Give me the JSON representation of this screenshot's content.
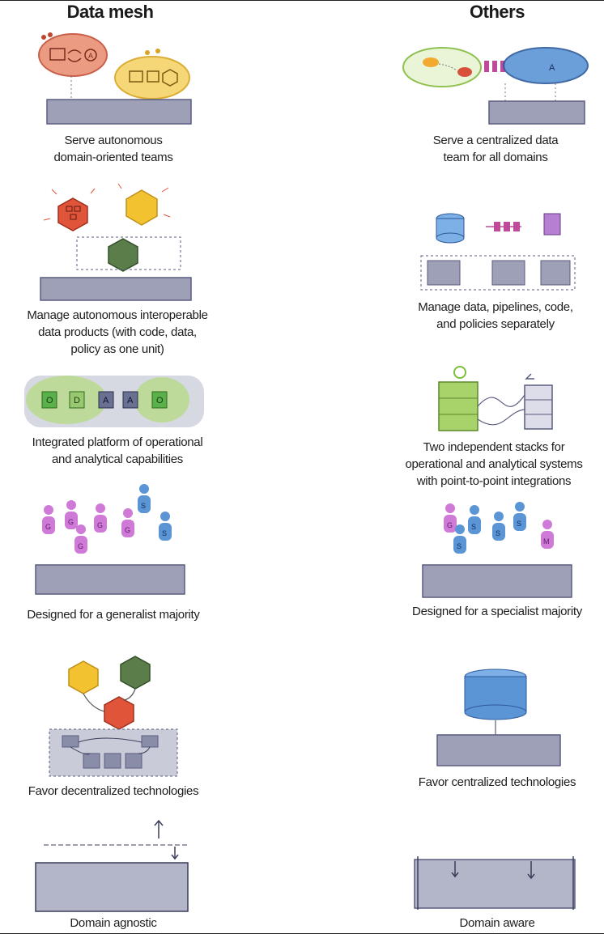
{
  "columns": {
    "left_title": "Data mesh",
    "right_title": "Others"
  },
  "rows": [
    {
      "left": [
        "Serve autonomous",
        "domain-oriented teams"
      ],
      "right": [
        "Serve a centralized data",
        "team for all domains"
      ]
    },
    {
      "left": [
        "Manage autonomous interoperable",
        "data products (with code, data,",
        "policy as one unit)"
      ],
      "right": [
        "Manage data, pipelines, code,",
        "and policies separately"
      ]
    },
    {
      "left": [
        "Integrated platform of operational",
        "and analytical capabilities"
      ],
      "right": [
        "Two independent stacks for",
        "operational and analytical systems",
        "with point-to-point integrations"
      ]
    },
    {
      "left": [
        "Designed for a generalist majority"
      ],
      "right": [
        "Designed for a specialist majority"
      ]
    },
    {
      "left": [
        "Favor decentralized technologies"
      ],
      "right": [
        "Favor centralized technologies"
      ]
    },
    {
      "left": [
        "Domain agnostic"
      ],
      "right": [
        "Domain aware"
      ]
    }
  ],
  "glyphs": {
    "domain_a": "A",
    "domain_o": "O",
    "domain_d": "D",
    "person_g": "G",
    "person_s": "S",
    "person_m": "M"
  },
  "colors": {
    "platform": "#9ea0b8",
    "platform_edge": "#5a5d80",
    "red": "#e0553a",
    "yellow": "#f2c230",
    "green_dark": "#5a7d4a",
    "green_light": "#a8d36a",
    "blue": "#5b95d6",
    "magenta": "#c04a9a",
    "purple": "#b77fd0"
  }
}
